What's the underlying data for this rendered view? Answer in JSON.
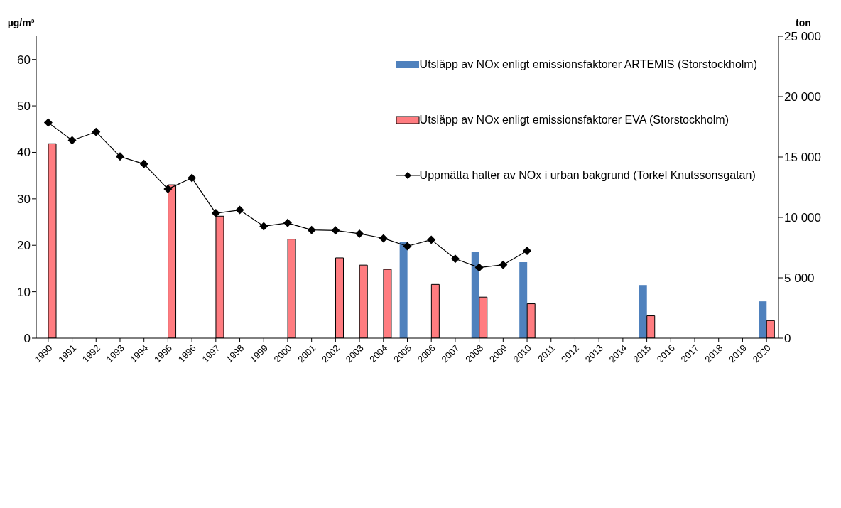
{
  "chart_data": {
    "type": "bar",
    "xlabel": null,
    "ylabel": "µg/m³",
    "y2label": "ton",
    "categories": [
      "1990",
      "1991",
      "1992",
      "1993",
      "1994",
      "1995",
      "1996",
      "1997",
      "1998",
      "1999",
      "2000",
      "2001",
      "2002",
      "2003",
      "2004",
      "2005",
      "2006",
      "2007",
      "2008",
      "2009",
      "2010",
      "2011",
      "2012",
      "2013",
      "2014",
      "2015",
      "2016",
      "2017",
      "2018",
      "2019",
      "2020"
    ],
    "series": [
      {
        "name": "Utsläpp av NOx enligt emissionsfaktorer ARTEMIS (Storstockholm)",
        "axis": "y2",
        "color": "#4f81bd",
        "values": [
          null,
          null,
          null,
          null,
          null,
          null,
          null,
          null,
          null,
          null,
          null,
          null,
          null,
          null,
          null,
          7950,
          null,
          null,
          7150,
          null,
          6300,
          null,
          null,
          null,
          null,
          4400,
          null,
          null,
          null,
          null,
          3050
        ]
      },
      {
        "name": "Utsläpp av NOx enligt emissionsfaktorer EVA (Storstockholm)",
        "axis": "y2",
        "color": "#ff7c80",
        "values": [
          16100,
          null,
          null,
          null,
          null,
          12700,
          null,
          10100,
          null,
          null,
          8200,
          null,
          6650,
          6050,
          5700,
          null,
          4450,
          null,
          3400,
          null,
          2850,
          null,
          null,
          null,
          null,
          1850,
          null,
          null,
          null,
          null,
          1450
        ]
      },
      {
        "name": "Uppmätta halter av NOx i urban bakgrund (Torkel Knutssonsgatan)",
        "type": "line",
        "color": "#000000",
        "marker": "diamond",
        "values": [
          46.4,
          42.6,
          44.4,
          39.1,
          37.5,
          32.1,
          34.5,
          26.9,
          27.6,
          24.1,
          24.8,
          23.3,
          23.2,
          22.5,
          21.5,
          19.8,
          21.2,
          17.1,
          15.2,
          15.8,
          18.8,
          null,
          null,
          null,
          null,
          null,
          null,
          null,
          null,
          null,
          null
        ]
      }
    ],
    "ylim": [
      0,
      65
    ],
    "yticks": [
      0,
      10,
      20,
      30,
      40,
      50,
      60
    ],
    "y2lim": [
      0,
      25000
    ],
    "y2ticks": [
      0,
      {
        "value": 5000,
        "label": "5 000"
      },
      {
        "value": 10000,
        "label": "10 000"
      },
      {
        "value": 15000,
        "label": "15 000"
      },
      {
        "value": 20000,
        "label": "20 000"
      },
      {
        "value": 25000,
        "label": "25 000"
      }
    ],
    "grid": false,
    "legend": "top right"
  }
}
